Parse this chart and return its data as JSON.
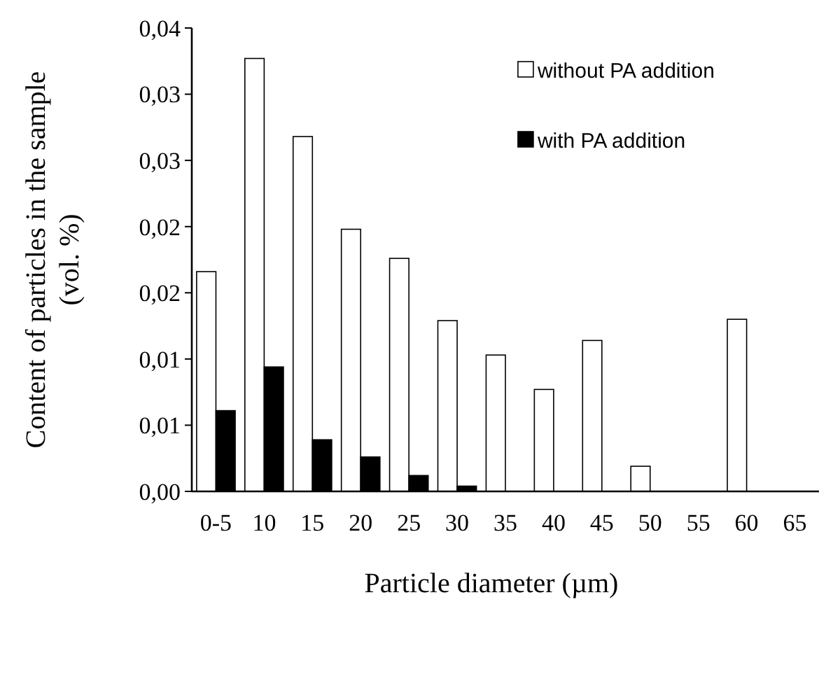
{
  "chart_data": {
    "type": "bar",
    "xlabel": "Particle diameter (µm)",
    "ylabel": "Content of particles in the sample (vol. %)",
    "categories": [
      "0-5",
      "10",
      "15",
      "20",
      "25",
      "30",
      "35",
      "40",
      "45",
      "50",
      "55",
      "60",
      "65"
    ],
    "series": [
      {
        "name": "without PA addition",
        "color": "#ffffff",
        "values": [
          0.0166,
          0.0327,
          0.0268,
          0.0198,
          0.0176,
          0.0129,
          0.0103,
          0.0077,
          0.0114,
          0.0019,
          0,
          0.013,
          0
        ]
      },
      {
        "name": "with PA addition",
        "color": "#000000",
        "values": [
          0.0061,
          0.0094,
          0.0039,
          0.0026,
          0.0012,
          0.0004,
          0,
          0,
          0,
          0,
          0,
          0,
          0
        ]
      }
    ],
    "ylim": [
      0,
      0.035
    ],
    "yticks": [
      {
        "value": 0,
        "label": "0,00"
      },
      {
        "value": 0.005,
        "label": "0,01"
      },
      {
        "value": 0.01,
        "label": "0,01"
      },
      {
        "value": 0.015,
        "label": "0,02"
      },
      {
        "value": 0.02,
        "label": "0,02"
      },
      {
        "value": 0.025,
        "label": "0,03"
      },
      {
        "value": 0.03,
        "label": "0,03"
      },
      {
        "value": 0.035,
        "label": "0,04"
      }
    ],
    "grid": false,
    "legend": "top right"
  }
}
